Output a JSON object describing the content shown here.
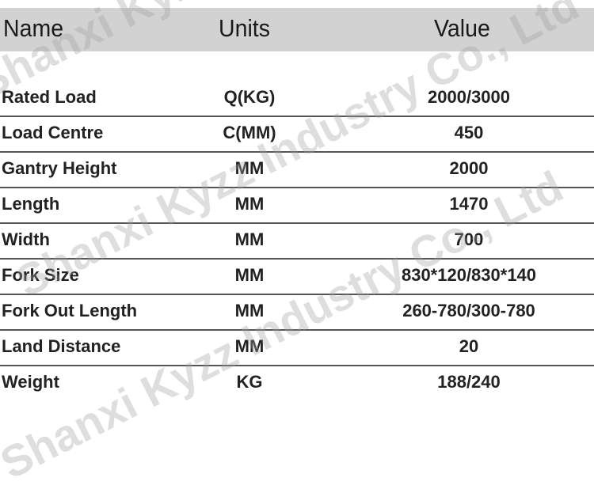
{
  "header": {
    "name": "Name",
    "units": "Units",
    "value": "Value"
  },
  "rows": [
    {
      "name": "Rated Load",
      "units": "Q(KG)",
      "value": "2000/3000"
    },
    {
      "name": "Load Centre",
      "units": "C(MM)",
      "value": "450"
    },
    {
      "name": "Gantry Height",
      "units": "MM",
      "value": "2000"
    },
    {
      "name": "Length",
      "units": "MM",
      "value": "1470"
    },
    {
      "name": "Width",
      "units": "MM",
      "value": "700"
    },
    {
      "name": "Fork Size",
      "units": "MM",
      "value": "830*120/830*140"
    },
    {
      "name": "Fork Out Length",
      "units": "MM",
      "value": "260-780/300-780"
    },
    {
      "name": "Land Distance",
      "units": "MM",
      "value": "20"
    },
    {
      "name": "Weight",
      "units": "KG",
      "value": "188/240"
    }
  ],
  "watermark": "Shanxi Kyzz Industry Co., Ltd"
}
